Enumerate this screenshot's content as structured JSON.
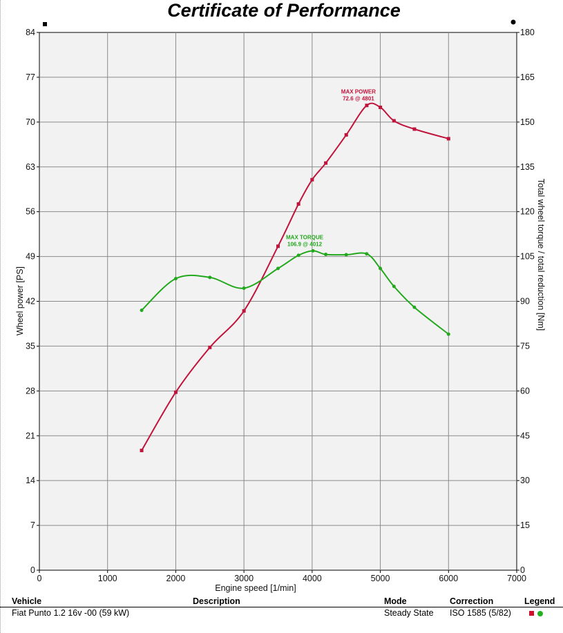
{
  "chart_data": {
    "type": "line",
    "title": "Certificate of Performance",
    "xlabel": "Engine speed [1/min]",
    "ylabel": "Wheel power [PS]",
    "y2label": "Total wheel torque / total reduction [Nm]",
    "xlim": [
      0,
      7000
    ],
    "ylim": [
      0,
      84
    ],
    "y2lim": [
      0,
      180
    ],
    "x_ticks": [
      "0",
      "1000",
      "2000",
      "3000",
      "4000",
      "5000",
      "6000",
      "7000"
    ],
    "y_ticks": [
      "0",
      "7",
      "14",
      "21",
      "28",
      "35",
      "42",
      "49",
      "56",
      "63",
      "70",
      "77",
      "84"
    ],
    "y2_ticks": [
      "0",
      "15",
      "30",
      "45",
      "60",
      "75",
      "90",
      "105",
      "120",
      "135",
      "150",
      "165",
      "180"
    ],
    "grid": true,
    "series": [
      {
        "axis": "left",
        "color": "#c0143c",
        "marker": "square",
        "x": [
          1500,
          2000,
          2500,
          3000,
          3500,
          3800,
          4000,
          4200,
          4500,
          4801,
          5000,
          5200,
          5500,
          6000
        ],
        "values": [
          18.7,
          27.8,
          34.8,
          40.5,
          50.6,
          57.2,
          61.0,
          63.6,
          68.0,
          72.6,
          72.3,
          70.2,
          68.9,
          67.4
        ]
      },
      {
        "axis": "right",
        "color": "#22a81c",
        "marker": "circle",
        "x": [
          1500,
          2000,
          2500,
          3000,
          3500,
          3800,
          4012,
          4200,
          4500,
          4800,
          5000,
          5200,
          5500,
          6000
        ],
        "values": [
          87.0,
          97.6,
          98.0,
          94.4,
          101.0,
          105.4,
          106.9,
          105.7,
          105.6,
          105.9,
          101.0,
          95.0,
          88.0,
          79.0
        ]
      }
    ],
    "annotations": [
      {
        "series": 0,
        "x": 4801,
        "y": 72.6,
        "line1": "MAX POWER",
        "line2": "72.6 @ 4801"
      },
      {
        "series": 1,
        "x": 4012,
        "y": 106.9,
        "line1": "MAX TORQUE",
        "line2": "106.9 @ 4012"
      }
    ]
  },
  "info": {
    "headers": {
      "vehicle": "Vehicle",
      "description": "Description",
      "mode": "Mode",
      "correction": "Correction",
      "legend": "Legend"
    },
    "values": {
      "vehicle": "Fiat Punto 1.2 16v -00 (59 kW)",
      "description": "",
      "mode": "Steady State",
      "correction": "ISO 1585 (5/82)"
    }
  }
}
